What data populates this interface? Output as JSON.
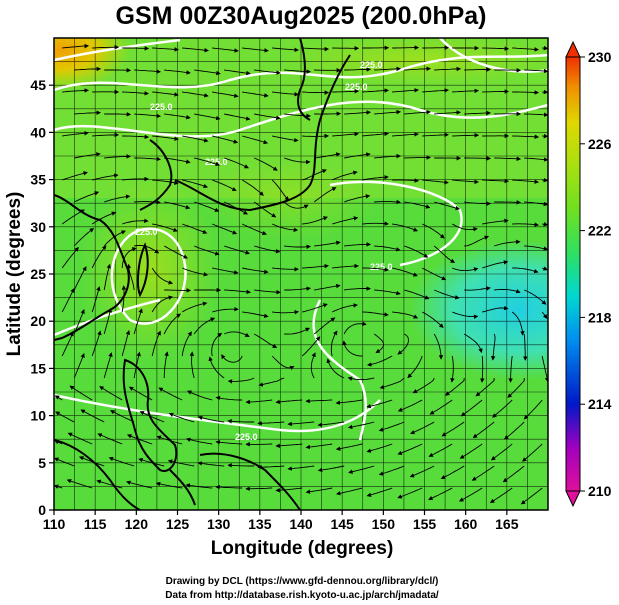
{
  "title": "GSM 00Z30Aug2025 (200.0hPa)",
  "x_axis": {
    "label": "Longitude (degrees)",
    "ticks": [
      "110",
      "115",
      "120",
      "125",
      "130",
      "135",
      "140",
      "145",
      "150",
      "155",
      "160",
      "165"
    ]
  },
  "y_axis": {
    "label": "Latitude (degrees)",
    "ticks": [
      "0",
      "5",
      "10",
      "15",
      "20",
      "25",
      "30",
      "35",
      "40",
      "45"
    ]
  },
  "colorbar": {
    "ticks": [
      "210",
      "214",
      "218",
      "222",
      "226",
      "230"
    ],
    "colors": [
      "#e0109a",
      "#a000c0",
      "#0018c8",
      "#0090f0",
      "#00d8d0",
      "#30e060",
      "#70e020",
      "#a8e010",
      "#e0d800",
      "#f09000",
      "#f03000"
    ]
  },
  "contour_labels": [
    "225.0",
    "225.0",
    "225.0",
    "225.0",
    "225.0",
    "225.0",
    "225.0"
  ],
  "credits": {
    "line1": "Drawing by DCL (https://www.gfd-dennou.org/library/dcl/)",
    "line2": "Data from http://database.rish.kyoto-u.ac.jp/arch/jmadata/"
  }
}
